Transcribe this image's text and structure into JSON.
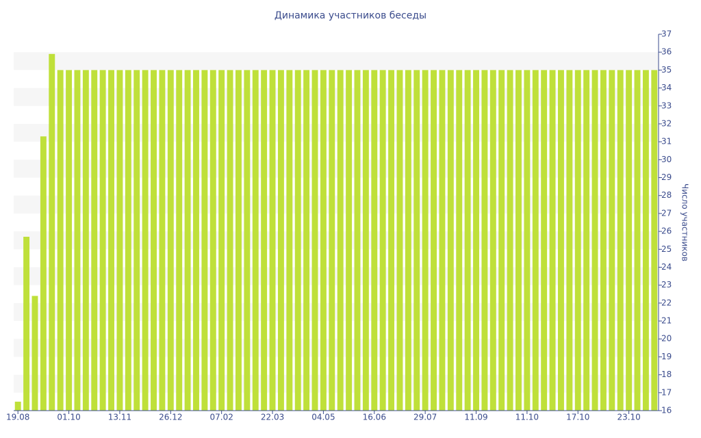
{
  "chart_data": {
    "type": "bar",
    "title": "Динамика участников беседы",
    "y_label": "Число участников",
    "categories": [
      "19.08",
      null,
      null,
      null,
      null,
      null,
      "01.10",
      null,
      null,
      null,
      null,
      null,
      "13.11",
      null,
      null,
      null,
      null,
      null,
      "26.12",
      null,
      null,
      null,
      null,
      null,
      "07.02",
      null,
      null,
      null,
      null,
      null,
      "22.03",
      null,
      null,
      null,
      null,
      null,
      "04.05",
      null,
      null,
      null,
      null,
      null,
      "16.06",
      null,
      null,
      null,
      null,
      null,
      "29.07",
      null,
      null,
      null,
      null,
      null,
      "11.09",
      null,
      null,
      null,
      null,
      null,
      "11.10",
      null,
      null,
      null,
      null,
      null,
      "17.10",
      null,
      null,
      null,
      null,
      null,
      "23.10",
      null,
      null,
      null
    ],
    "values": [
      16.5,
      25.7,
      22.4,
      31.3,
      35.9,
      35,
      35,
      35,
      35,
      35,
      35,
      35,
      35,
      35,
      35,
      35,
      35,
      35,
      35,
      35,
      35,
      35,
      35,
      35,
      35,
      35,
      35,
      35,
      35,
      35,
      35,
      35,
      35,
      35,
      35,
      35,
      35,
      35,
      35,
      35,
      35,
      35,
      35,
      35,
      35,
      35,
      35,
      35,
      35,
      35,
      35,
      35,
      35,
      35,
      35,
      35,
      35,
      35,
      35,
      35,
      35,
      35,
      35,
      35,
      35,
      35,
      35,
      35,
      35,
      35,
      35,
      35,
      35,
      35,
      35,
      35
    ],
    "color": "#bfe03a",
    "ylim": [
      16,
      37
    ],
    "yticks": [
      16,
      17,
      18,
      19,
      20,
      21,
      22,
      23,
      24,
      25,
      26,
      27,
      28,
      29,
      30,
      31,
      32,
      33,
      34,
      35,
      36,
      37
    ],
    "grid": true,
    "y_axis_side": "right"
  }
}
